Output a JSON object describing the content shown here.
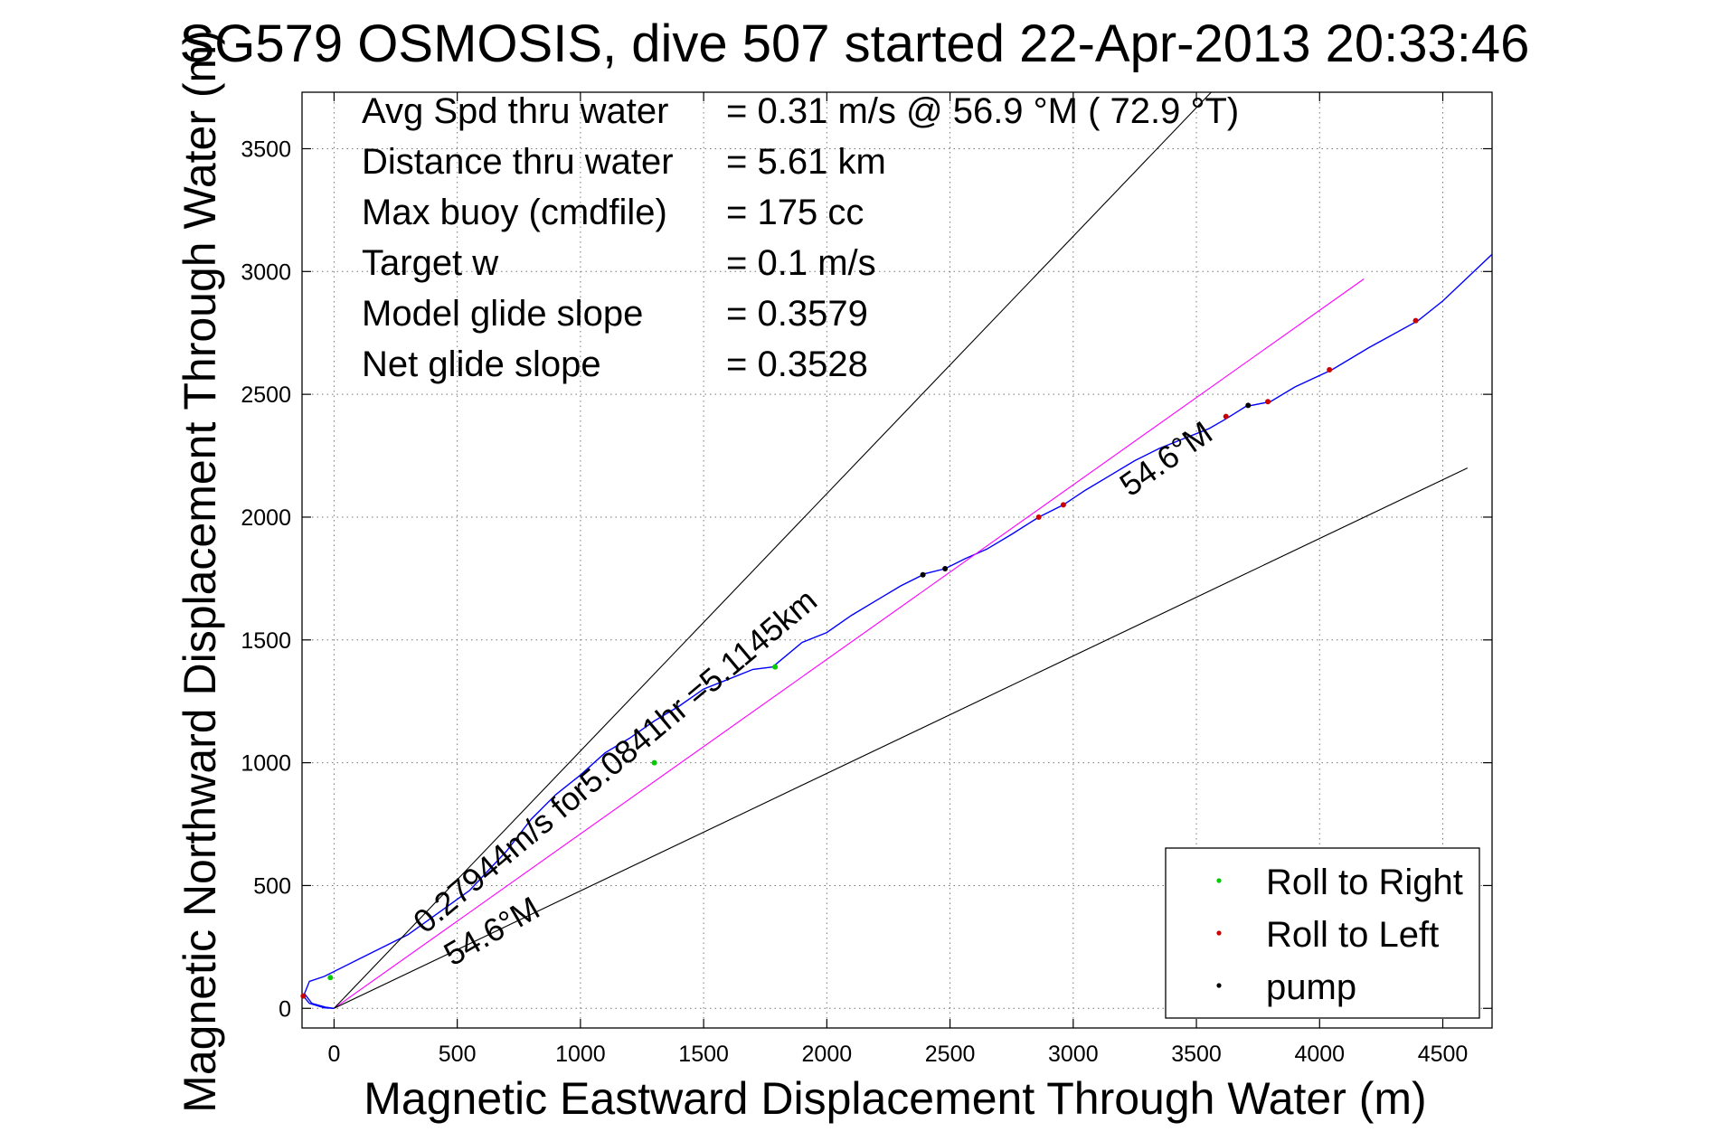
{
  "chart_data": {
    "type": "line",
    "title": "SG579 OSMOSIS, dive 507 started 22-Apr-2013 20:33:46",
    "xlabel": "Magnetic Eastward Displacement Through Water (m)",
    "ylabel": "Magnetic Northward Displacement Through Water (m)",
    "xlim": [
      -130,
      4700
    ],
    "ylim": [
      -80,
      3730
    ],
    "xticks": [
      0,
      500,
      1000,
      1500,
      2000,
      2500,
      3000,
      3500,
      4000,
      4500
    ],
    "yticks": [
      0,
      500,
      1000,
      1500,
      2000,
      2500,
      3000,
      3500
    ],
    "grid": true,
    "grid_style": "dotted",
    "info": [
      {
        "label": "Avg Spd thru water",
        "value": "=  0.31 m/s @  56.9 °M ( 72.9 °T)"
      },
      {
        "label": "Distance thru water",
        "value": "=  5.61 km"
      },
      {
        "label": "Max buoy (cmdfile)",
        "value": "= 175 cc"
      },
      {
        "label": "Target w",
        "value": "= 0.1 m/s"
      },
      {
        "label": "Model glide slope",
        "value": "= 0.3579"
      },
      {
        "label": "Net glide slope",
        "value": "= 0.3528"
      }
    ],
    "annotations": [
      {
        "text": "0.27944m/s for5.0841hr =5.1145km",
        "x": 370,
        "y": 300,
        "angle_deg": 40
      },
      {
        "text": "54.6°M",
        "x": 480,
        "y": 170,
        "angle_deg": 30
      },
      {
        "text": "54.6°M",
        "x": 3230,
        "y": 2080,
        "angle_deg": 35
      }
    ],
    "series": [
      {
        "name": "track",
        "color": "#0000ff",
        "x": [
          0,
          -35,
          -90,
          -120,
          -100,
          -40,
          100,
          300,
          550,
          700,
          800,
          900,
          1000,
          1100,
          1200,
          1300,
          1400,
          1500,
          1600,
          1700,
          1780,
          1900,
          2000,
          2100,
          2200,
          2300,
          2400,
          2480,
          2560,
          2650,
          2750,
          2860,
          2960,
          3050,
          3150,
          3250,
          3350,
          3450,
          3550,
          3620,
          3700,
          3800,
          3900,
          4050,
          4200,
          4400,
          4500,
          4700
        ],
        "y": [
          0,
          5,
          20,
          60,
          110,
          130,
          200,
          300,
          480,
          640,
          770,
          870,
          950,
          1040,
          1100,
          1170,
          1230,
          1300,
          1340,
          1380,
          1390,
          1490,
          1530,
          1600,
          1660,
          1720,
          1770,
          1790,
          1830,
          1870,
          1930,
          2000,
          2050,
          2110,
          2170,
          2230,
          2280,
          2320,
          2360,
          2400,
          2450,
          2470,
          2530,
          2600,
          2690,
          2800,
          2880,
          3070
        ]
      },
      {
        "name": "track-start",
        "color": "#0000ff",
        "x": [
          0,
          -40,
          -100,
          -125
        ],
        "y": [
          0,
          2,
          20,
          50
        ]
      },
      {
        "name": "course",
        "color": "#ff00ff",
        "x": [
          0,
          4180
        ],
        "y": [
          0,
          2970
        ]
      },
      {
        "name": "54.6°M lower",
        "color": "#000000",
        "x": [
          0,
          4600
        ],
        "y": [
          0,
          2200
        ]
      },
      {
        "name": "54.6°M upper",
        "color": "#000000",
        "x": [
          0,
          3560
        ],
        "y": [
          0,
          3730
        ]
      }
    ],
    "points": {
      "Roll to Right": {
        "color": "#00cc00",
        "x": [
          -15,
          1790,
          1300
        ],
        "y": [
          125,
          1390,
          1000
        ]
      },
      "Roll to Left": {
        "color": "#cc0000",
        "x": [
          -125,
          2860,
          2960,
          3620,
          3790,
          4040,
          4390
        ],
        "y": [
          50,
          2000,
          2050,
          2410,
          2470,
          2600,
          2800
        ]
      },
      "pump": {
        "color": "#000000",
        "x": [
          2390,
          2480,
          3710
        ],
        "y": [
          1765,
          1790,
          2455
        ]
      }
    },
    "legend": {
      "position": "bottom-right",
      "entries": [
        {
          "label": "Roll to Right",
          "color": "#00cc00"
        },
        {
          "label": "Roll to Left",
          "color": "#cc0000"
        },
        {
          "label": "pump",
          "color": "#000000"
        }
      ]
    }
  }
}
